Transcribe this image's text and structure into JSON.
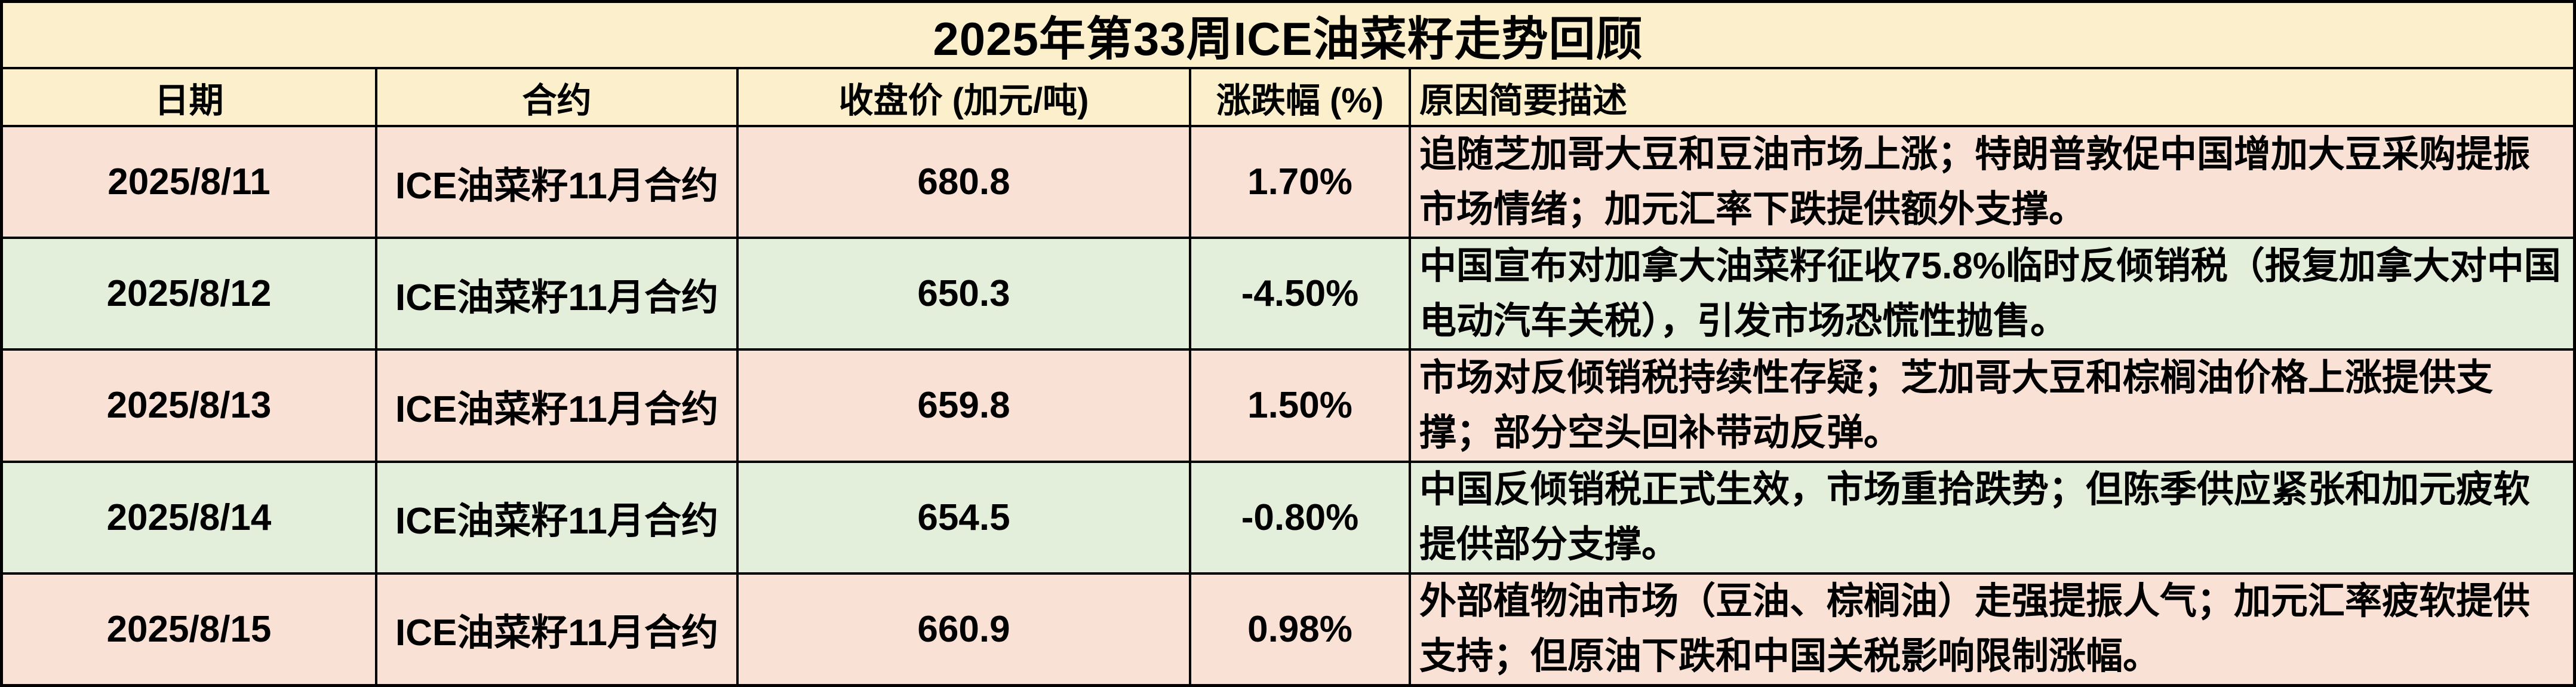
{
  "title": "2025年第33周ICE油菜籽走势回顾",
  "table": {
    "columns": [
      "日期",
      "合约",
      "收盘价 (加元/吨)",
      "涨跌幅 (%)",
      "原因简要描述"
    ],
    "rows": [
      {
        "date": "2025/8/11",
        "contract": "ICE油菜籽11月合约",
        "close": "680.8",
        "change": "1.70%",
        "reason": "追随芝加哥大豆和豆油市场上涨；特朗普敦促中国增加大豆采购提振市场情绪；加元汇率下跌提供额外支撑。"
      },
      {
        "date": "2025/8/12",
        "contract": "ICE油菜籽11月合约",
        "close": "650.3",
        "change": "-4.50%",
        "reason": "中国宣布对加拿大油菜籽征收75.8%临时反倾销税（报复加拿大对中国电动汽车关税），引发市场恐慌性抛售。"
      },
      {
        "date": "2025/8/13",
        "contract": "ICE油菜籽11月合约",
        "close": "659.8",
        "change": "1.50%",
        "reason": "市场对反倾销税持续性存疑；芝加哥大豆和棕榈油价格上涨提供支撑；部分空头回补带动反弹。"
      },
      {
        "date": "2025/8/14",
        "contract": "ICE油菜籽11月合约",
        "close": "654.5",
        "change": "-0.80%",
        "reason": "中国反倾销税正式生效，市场重拾跌势；但陈季供应紧张和加元疲软提供部分支撑。"
      },
      {
        "date": "2025/8/15",
        "contract": "ICE油菜籽11月合约",
        "close": "660.9",
        "change": "0.98%",
        "reason": "外部植物油市场（豆油、棕榈油）走强提振人气；加元汇率疲软提供支持；但原油下跌和中国关税影响限制涨幅。"
      }
    ]
  },
  "colors": {
    "title_bg": "#FBF0CB",
    "header_bg": "#FBF0CB",
    "row_warm_bg": "#F9E1D5",
    "row_cool_bg": "#E3EFDB",
    "border": "#000000",
    "text": "#000000"
  }
}
